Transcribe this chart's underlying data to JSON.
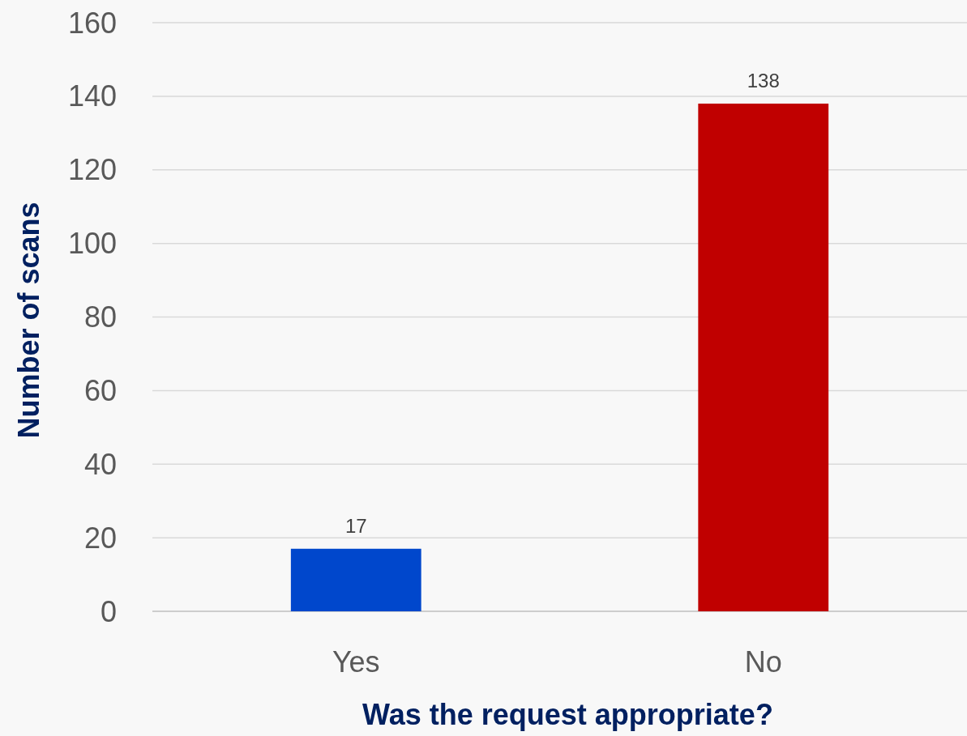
{
  "chart_data": {
    "type": "bar",
    "xlabel": "Was the request appropriate?",
    "ylabel": "Number of scans",
    "categories": [
      "Yes",
      "No"
    ],
    "values": [
      17,
      138
    ],
    "colors": [
      "#0047cc",
      "#c00000"
    ],
    "ylim": [
      0,
      160
    ],
    "yticks": [
      0,
      20,
      40,
      60,
      80,
      100,
      120,
      140,
      160
    ],
    "grid": "y",
    "data_labels": true
  }
}
